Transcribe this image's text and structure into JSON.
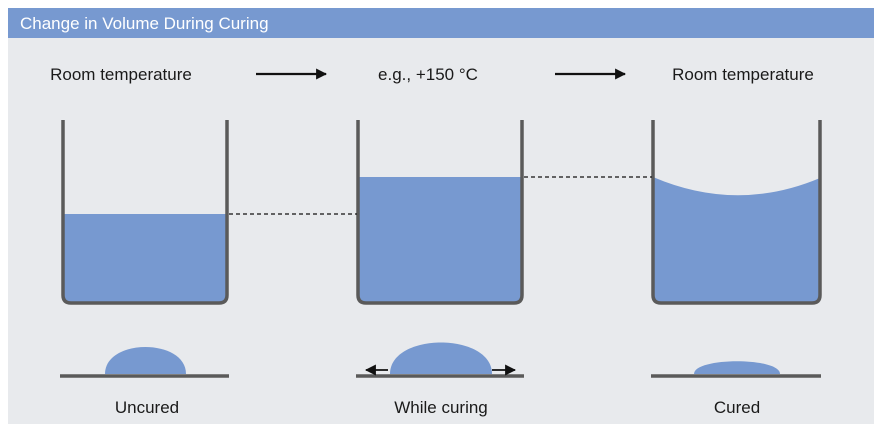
{
  "header": {
    "title": "Change in Volume During Curing"
  },
  "steps": [
    {
      "temperature": "Room temperature",
      "state": "Uncured"
    },
    {
      "temperature": "e.g., +150 °C",
      "state": "While curing"
    },
    {
      "temperature": "Room temperature",
      "state": "Cured"
    }
  ],
  "colors": {
    "header": "#7799d0",
    "background": "#e8eaed",
    "liquid": "#7799d0",
    "container": "#5a5a5a",
    "text": "#1a1a1a"
  },
  "icons": [
    "arrow-right-icon",
    "expand-arrows-icon"
  ]
}
